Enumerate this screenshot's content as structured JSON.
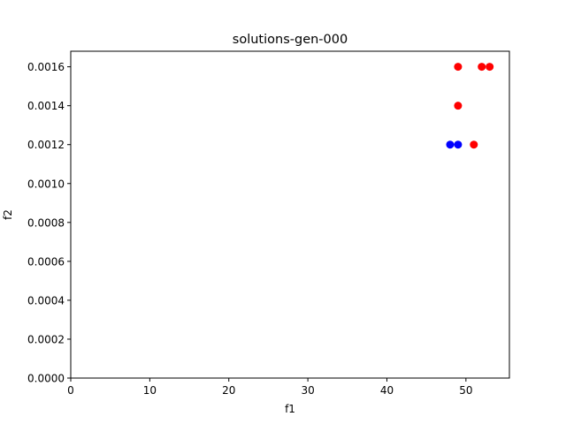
{
  "chart_data": {
    "type": "scatter",
    "title": "solutions-gen-000",
    "xlabel": "f1",
    "ylabel": "f2",
    "xlim": [
      0,
      55.5
    ],
    "ylim": [
      0,
      0.00168
    ],
    "xticks": [
      0,
      10,
      20,
      30,
      40,
      50
    ],
    "xtick_labels": [
      "0",
      "10",
      "20",
      "30",
      "40",
      "50"
    ],
    "yticks": [
      0,
      0.0002,
      0.0004,
      0.0006,
      0.0008,
      0.001,
      0.0012,
      0.0014,
      0.0016
    ],
    "ytick_labels": [
      "0.0000",
      "0.0002",
      "0.0004",
      "0.0006",
      "0.0008",
      "0.0010",
      "0.0012",
      "0.0014",
      "0.0016"
    ],
    "grid": false,
    "series": [
      {
        "color": "#ff0000",
        "points": [
          {
            "x": 49,
            "y": 0.0016
          },
          {
            "x": 52,
            "y": 0.0016
          },
          {
            "x": 53,
            "y": 0.0016
          },
          {
            "x": 49,
            "y": 0.0014
          },
          {
            "x": 51,
            "y": 0.0012
          }
        ]
      },
      {
        "color": "#0000ff",
        "points": [
          {
            "x": 48,
            "y": 0.0012
          },
          {
            "x": 49,
            "y": 0.0012
          }
        ]
      }
    ]
  }
}
